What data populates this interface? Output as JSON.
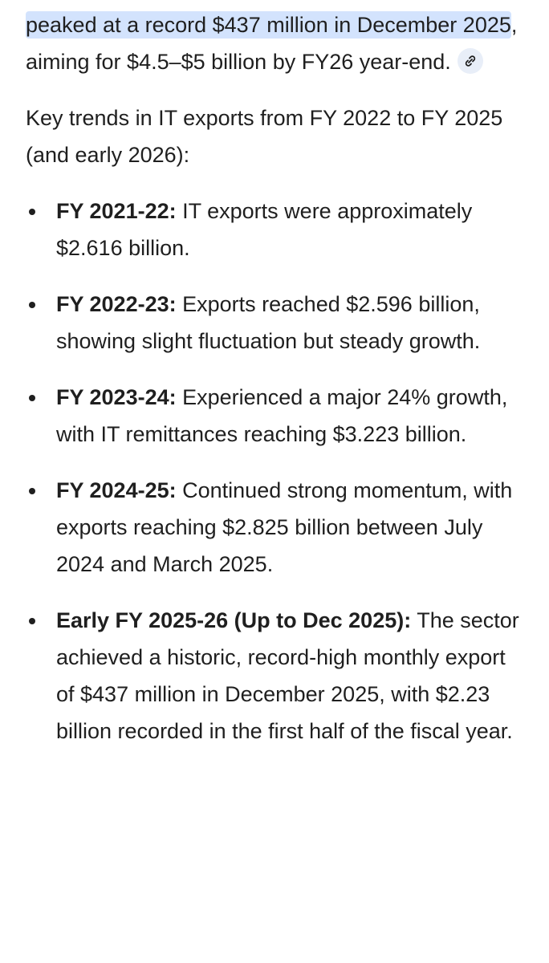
{
  "intro": {
    "highlight": "peaked at a record $437 million in December 2025",
    "rest": ", aiming for $4.5–$5 billion by FY26 year-end."
  },
  "lead": "Key trends in IT exports from FY 2022 to FY 2025 (and early 2026):",
  "items": [
    {
      "label": "FY 2021-22:",
      "text": "IT exports were approximately $2.616 billion."
    },
    {
      "label": "FY 2022-23:",
      "text": "Exports reached $2.596 billion, showing slight fluctuation but steady growth."
    },
    {
      "label": "FY 2023-24:",
      "text": "Experienced a major 24% growth, with IT remittances reaching $3.223 billion."
    },
    {
      "label": "FY 2024-25:",
      "text": "Continued strong momentum, with exports reaching $2.825 billion between July 2024 and March 2025."
    },
    {
      "label": "Early FY 2025-26 (Up to Dec 2025):",
      "text": "The sector achieved a historic, record-high monthly export of $437 million in December 2025, with $2.23 billion recorded in the first half of the fiscal year."
    }
  ]
}
